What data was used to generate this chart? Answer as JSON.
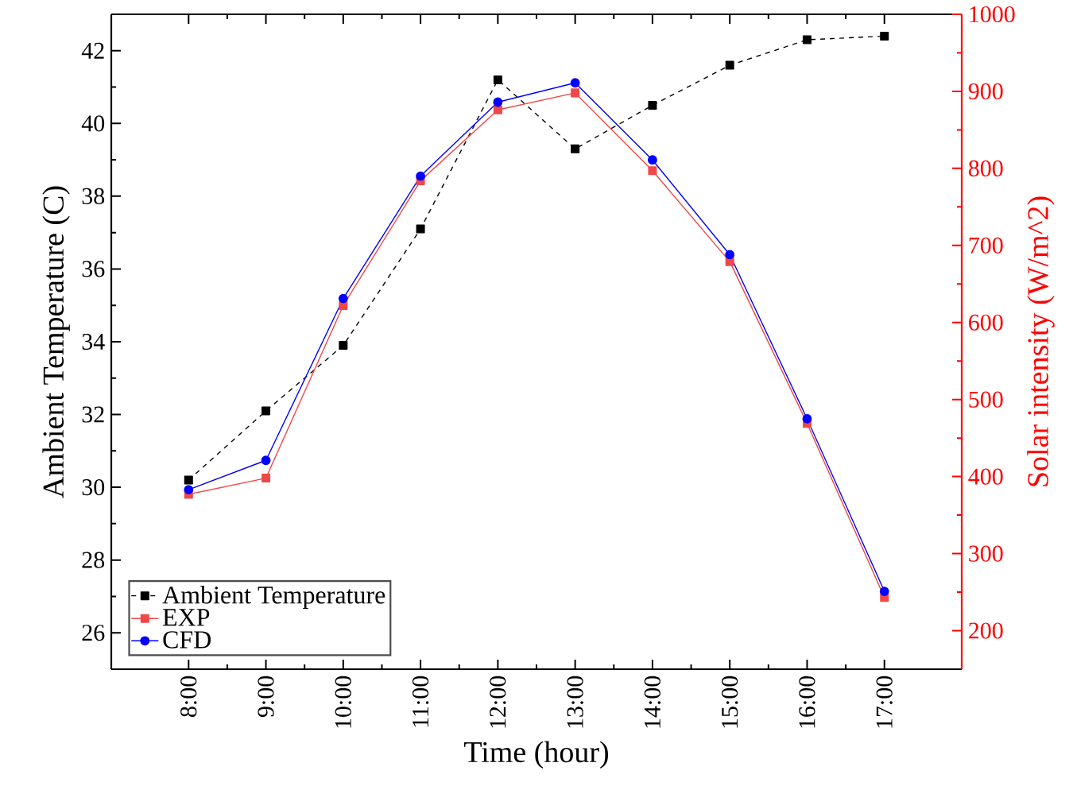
{
  "chart_data": {
    "type": "line",
    "xlabel": "Time (hour)",
    "ylabel": "Ambient Temperature (C)",
    "y2label": "Solar intensity (W/m^2)",
    "categories": [
      "8:00",
      "9:00",
      "10:00",
      "11:00",
      "12:00",
      "13:00",
      "14:00",
      "15:00",
      "16:00",
      "17:00"
    ],
    "series": [
      {
        "name": "Ambient Temperature",
        "color": "#000000",
        "marker": "square",
        "line_style": "dashed",
        "values": [
          30.2,
          32.1,
          33.9,
          37.1,
          41.2,
          39.3,
          40.5,
          41.6,
          42.3,
          42.4
        ]
      },
      {
        "name": "EXP",
        "color": "#f04848",
        "marker": "square",
        "line_style": "solid",
        "axis": "y2",
        "values": [
          377,
          398,
          622,
          784,
          876,
          898,
          797,
          679,
          469,
          243
        ]
      },
      {
        "name": "CFD",
        "color": "#0000ff",
        "marker": "circle",
        "line_style": "solid",
        "axis": "y2",
        "values": [
          383,
          421,
          631,
          790,
          886,
          911,
          811,
          688,
          475,
          251
        ]
      }
    ],
    "ylim": [
      25,
      43
    ],
    "yticks": [
      26,
      28,
      30,
      32,
      34,
      36,
      38,
      40,
      42
    ],
    "y2lim": [
      150,
      1000
    ],
    "y2ticks": [
      200,
      300,
      400,
      500,
      600,
      700,
      800,
      900,
      1000
    ],
    "legend": "bottom left",
    "grid": false
  }
}
